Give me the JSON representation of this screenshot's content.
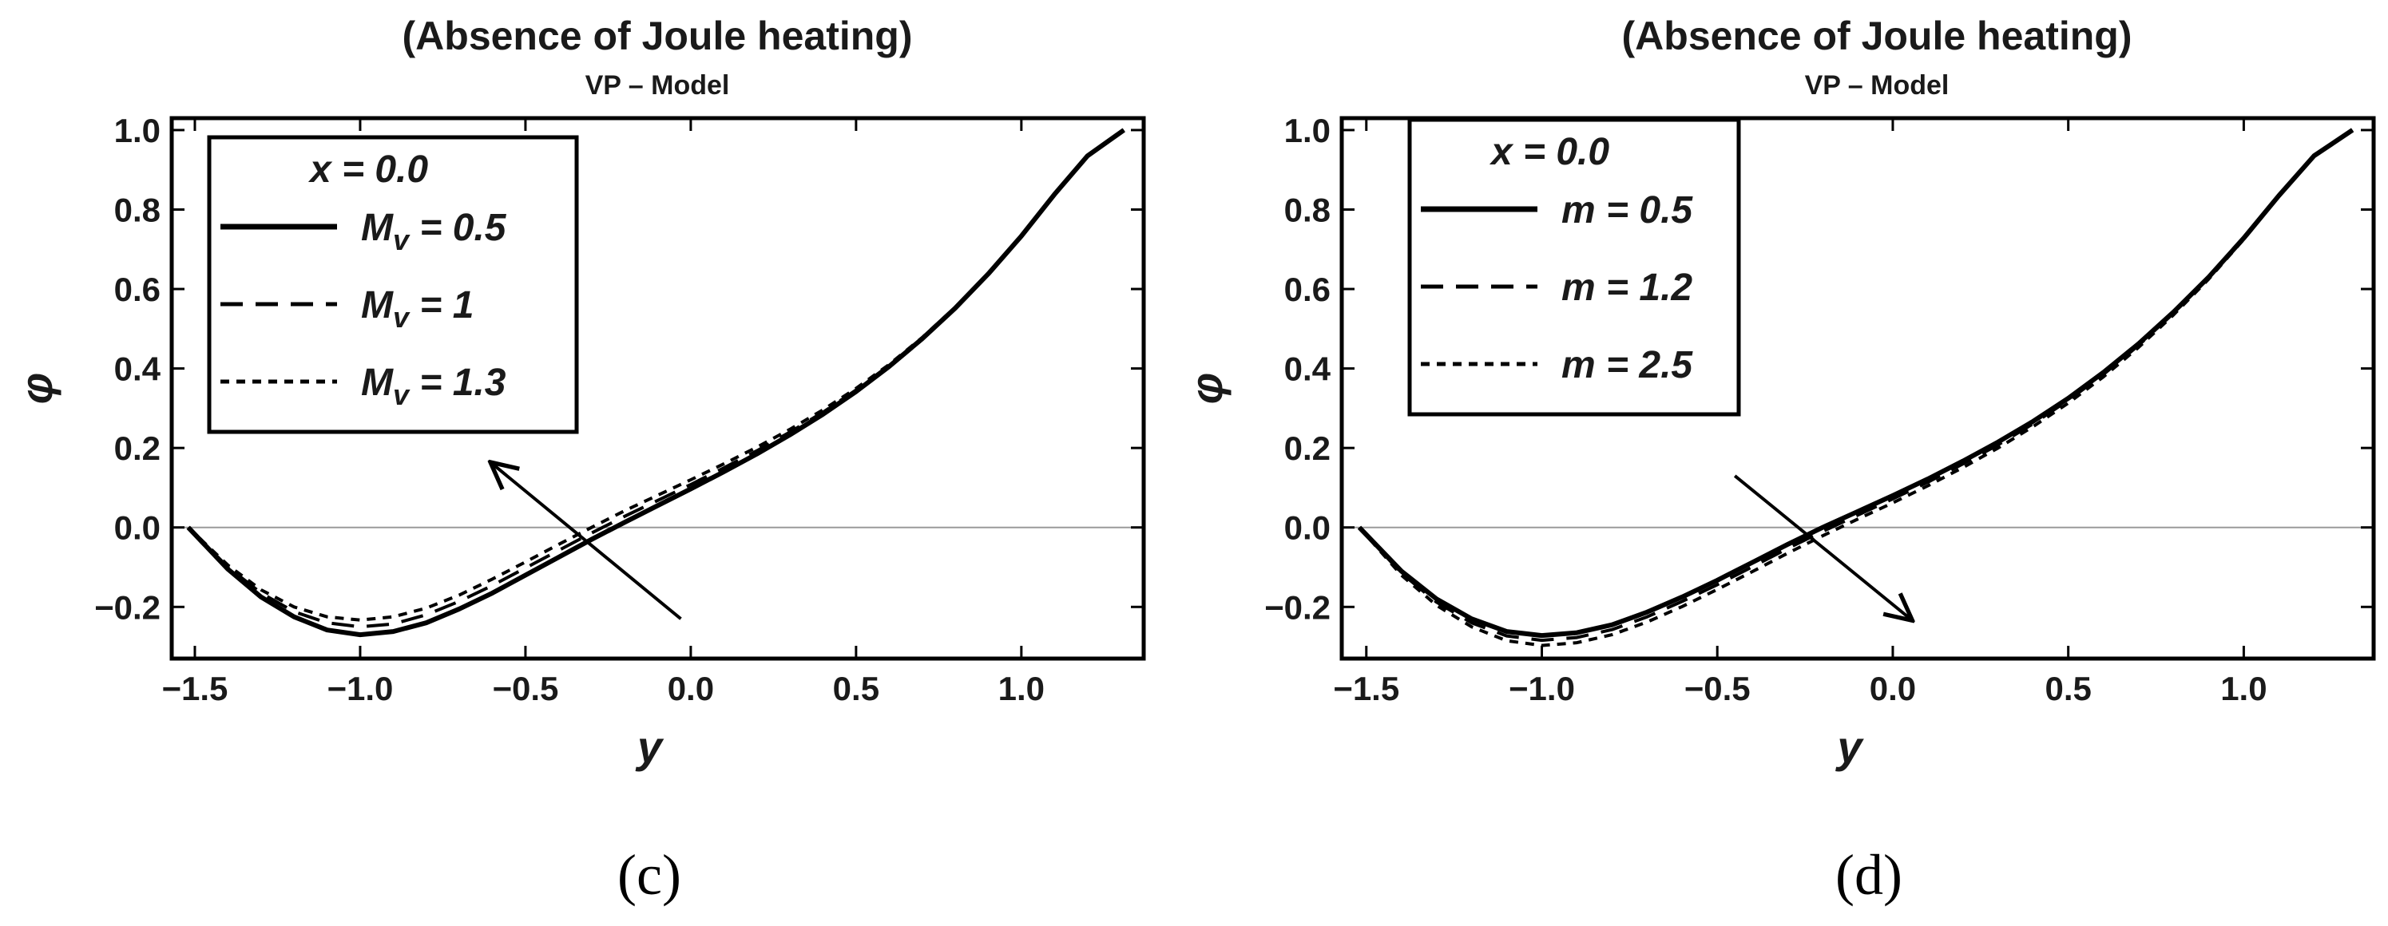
{
  "chart_data": [
    {
      "type": "line",
      "panel": "c",
      "caption": "(c)",
      "title": "(Absence of Joule heating)",
      "subtitle": "VP – Model",
      "xlabel": "y",
      "ylabel": "φ",
      "xlim": [
        -1.57,
        1.37
      ],
      "ylim": [
        -0.33,
        1.03
      ],
      "xticks": [
        -1.5,
        -1.0,
        -0.5,
        0.0,
        0.5,
        1.0
      ],
      "xtick_labels": [
        "−1.5",
        "−1.0",
        "−0.5",
        "0.0",
        "0.5",
        "1.0"
      ],
      "yticks": [
        -0.2,
        0.0,
        0.2,
        0.4,
        0.6,
        0.8,
        1.0
      ],
      "ytick_labels": [
        "−0.2",
        "0.0",
        "0.2",
        "0.4",
        "0.6",
        "0.8",
        "1.0"
      ],
      "legend_title": "x = 0.0",
      "legend_position": "top-left",
      "arrow": {
        "from": [
          -0.03,
          -0.23
        ],
        "to": [
          -0.6,
          0.16
        ],
        "meaning": "increasing M_v"
      },
      "series": [
        {
          "name": "M_v = 0.5",
          "label_var": "M",
          "label_sub": "v",
          "label_val": "= 0.5",
          "style": "solid",
          "x": [
            -1.52,
            -1.4,
            -1.3,
            -1.2,
            -1.1,
            -1.0,
            -0.9,
            -0.8,
            -0.7,
            -0.6,
            -0.5,
            -0.4,
            -0.3,
            -0.2,
            -0.1,
            0.0,
            0.1,
            0.2,
            0.3,
            0.4,
            0.5,
            0.6,
            0.7,
            0.8,
            0.9,
            1.0,
            1.1,
            1.2,
            1.31
          ],
          "y": [
            0.0,
            -0.105,
            -0.175,
            -0.225,
            -0.258,
            -0.27,
            -0.262,
            -0.24,
            -0.205,
            -0.165,
            -0.12,
            -0.075,
            -0.03,
            0.013,
            0.055,
            0.097,
            0.14,
            0.185,
            0.233,
            0.285,
            0.342,
            0.405,
            0.475,
            0.552,
            0.638,
            0.733,
            0.838,
            0.935,
            1.0
          ]
        },
        {
          "name": "M_v = 1",
          "label_var": "M",
          "label_sub": "v",
          "label_val": "= 1",
          "style": "dashed",
          "x": [
            -1.52,
            -1.4,
            -1.3,
            -1.2,
            -1.1,
            -1.0,
            -0.9,
            -0.8,
            -0.7,
            -0.6,
            -0.5,
            -0.4,
            -0.3,
            -0.2,
            -0.1,
            0.0,
            0.1,
            0.2,
            0.3,
            0.4,
            0.5,
            0.6,
            0.7,
            0.8,
            0.9,
            1.0,
            1.1,
            1.2,
            1.31
          ],
          "y": [
            0.0,
            -0.1,
            -0.165,
            -0.212,
            -0.24,
            -0.25,
            -0.243,
            -0.22,
            -0.186,
            -0.146,
            -0.102,
            -0.058,
            -0.014,
            0.028,
            0.068,
            0.108,
            0.15,
            0.193,
            0.24,
            0.29,
            0.346,
            0.408,
            0.477,
            0.553,
            0.638,
            0.732,
            0.837,
            0.935,
            1.0
          ]
        },
        {
          "name": "M_v = 1.3",
          "label_var": "M",
          "label_sub": "v",
          "label_val": "= 1.3",
          "style": "dotted",
          "x": [
            -1.52,
            -1.4,
            -1.3,
            -1.2,
            -1.1,
            -1.0,
            -0.9,
            -0.8,
            -0.7,
            -0.6,
            -0.5,
            -0.4,
            -0.3,
            -0.2,
            -0.1,
            0.0,
            0.1,
            0.2,
            0.3,
            0.4,
            0.5,
            0.6,
            0.7,
            0.8,
            0.9,
            1.0,
            1.1,
            1.2,
            1.31
          ],
          "y": [
            0.0,
            -0.095,
            -0.157,
            -0.2,
            -0.225,
            -0.233,
            -0.225,
            -0.203,
            -0.17,
            -0.13,
            -0.087,
            -0.043,
            0.0,
            0.042,
            0.081,
            0.12,
            0.16,
            0.202,
            0.247,
            0.296,
            0.35,
            0.41,
            0.478,
            0.554,
            0.638,
            0.732,
            0.837,
            0.935,
            1.0
          ]
        }
      ]
    },
    {
      "type": "line",
      "panel": "d",
      "caption": "(d)",
      "title": "(Absence of Joule heating)",
      "subtitle": "VP – Model",
      "xlabel": "y",
      "ylabel": "φ",
      "xlim": [
        -1.57,
        1.37
      ],
      "ylim": [
        -0.33,
        1.03
      ],
      "xticks": [
        -1.5,
        -1.0,
        -0.5,
        0.0,
        0.5,
        1.0
      ],
      "xtick_labels": [
        "−1.5",
        "−1.0",
        "−0.5",
        "0.0",
        "0.5",
        "1.0"
      ],
      "yticks": [
        -0.2,
        0.0,
        0.2,
        0.4,
        0.6,
        0.8,
        1.0
      ],
      "ytick_labels": [
        "−0.2",
        "0.0",
        "0.2",
        "0.4",
        "0.6",
        "0.8",
        "1.0"
      ],
      "legend_title": "x = 0.0",
      "legend_position": "top-left",
      "arrow": {
        "from": [
          -0.45,
          0.13
        ],
        "to": [
          0.05,
          -0.23
        ],
        "meaning": "increasing m"
      },
      "series": [
        {
          "name": "m = 0.5",
          "label_var": "m",
          "label_sub": "",
          "label_val": "= 0.5",
          "style": "solid",
          "x": [
            -1.52,
            -1.4,
            -1.3,
            -1.2,
            -1.1,
            -1.0,
            -0.9,
            -0.8,
            -0.7,
            -0.6,
            -0.5,
            -0.4,
            -0.3,
            -0.2,
            -0.1,
            0.0,
            0.1,
            0.2,
            0.3,
            0.4,
            0.5,
            0.6,
            0.7,
            0.8,
            0.9,
            1.0,
            1.1,
            1.2,
            1.31
          ],
          "y": [
            0.0,
            -0.11,
            -0.18,
            -0.23,
            -0.262,
            -0.272,
            -0.265,
            -0.245,
            -0.213,
            -0.175,
            -0.133,
            -0.088,
            -0.043,
            0.0,
            0.04,
            0.08,
            0.122,
            0.167,
            0.215,
            0.267,
            0.325,
            0.39,
            0.462,
            0.542,
            0.63,
            0.728,
            0.835,
            0.935,
            1.0
          ]
        },
        {
          "name": "m = 1.2",
          "label_var": "m",
          "label_sub": "",
          "label_val": "= 1.2",
          "style": "dashed",
          "x": [
            -1.52,
            -1.4,
            -1.3,
            -1.2,
            -1.1,
            -1.0,
            -0.9,
            -0.8,
            -0.7,
            -0.6,
            -0.5,
            -0.4,
            -0.3,
            -0.2,
            -0.1,
            0.0,
            0.1,
            0.2,
            0.3,
            0.4,
            0.5,
            0.6,
            0.7,
            0.8,
            0.9,
            1.0,
            1.1,
            1.2,
            1.31
          ],
          "y": [
            0.0,
            -0.115,
            -0.188,
            -0.24,
            -0.273,
            -0.284,
            -0.277,
            -0.257,
            -0.225,
            -0.186,
            -0.144,
            -0.099,
            -0.053,
            -0.01,
            0.031,
            0.072,
            0.114,
            0.16,
            0.208,
            0.261,
            0.32,
            0.385,
            0.458,
            0.539,
            0.628,
            0.727,
            0.835,
            0.935,
            1.0
          ]
        },
        {
          "name": "m = 2.5",
          "label_var": "m",
          "label_sub": "",
          "label_val": "= 2.5",
          "style": "dotted",
          "x": [
            -1.52,
            -1.4,
            -1.3,
            -1.2,
            -1.1,
            -1.0,
            -0.9,
            -0.8,
            -0.7,
            -0.6,
            -0.5,
            -0.4,
            -0.3,
            -0.2,
            -0.1,
            0.0,
            0.1,
            0.2,
            0.3,
            0.4,
            0.5,
            0.6,
            0.7,
            0.8,
            0.9,
            1.0,
            1.1,
            1.2,
            1.31
          ],
          "y": [
            0.0,
            -0.12,
            -0.196,
            -0.25,
            -0.285,
            -0.297,
            -0.29,
            -0.27,
            -0.238,
            -0.199,
            -0.156,
            -0.111,
            -0.065,
            -0.021,
            0.021,
            0.062,
            0.105,
            0.151,
            0.2,
            0.254,
            0.313,
            0.379,
            0.453,
            0.535,
            0.625,
            0.725,
            0.834,
            0.935,
            1.0
          ]
        }
      ]
    }
  ]
}
